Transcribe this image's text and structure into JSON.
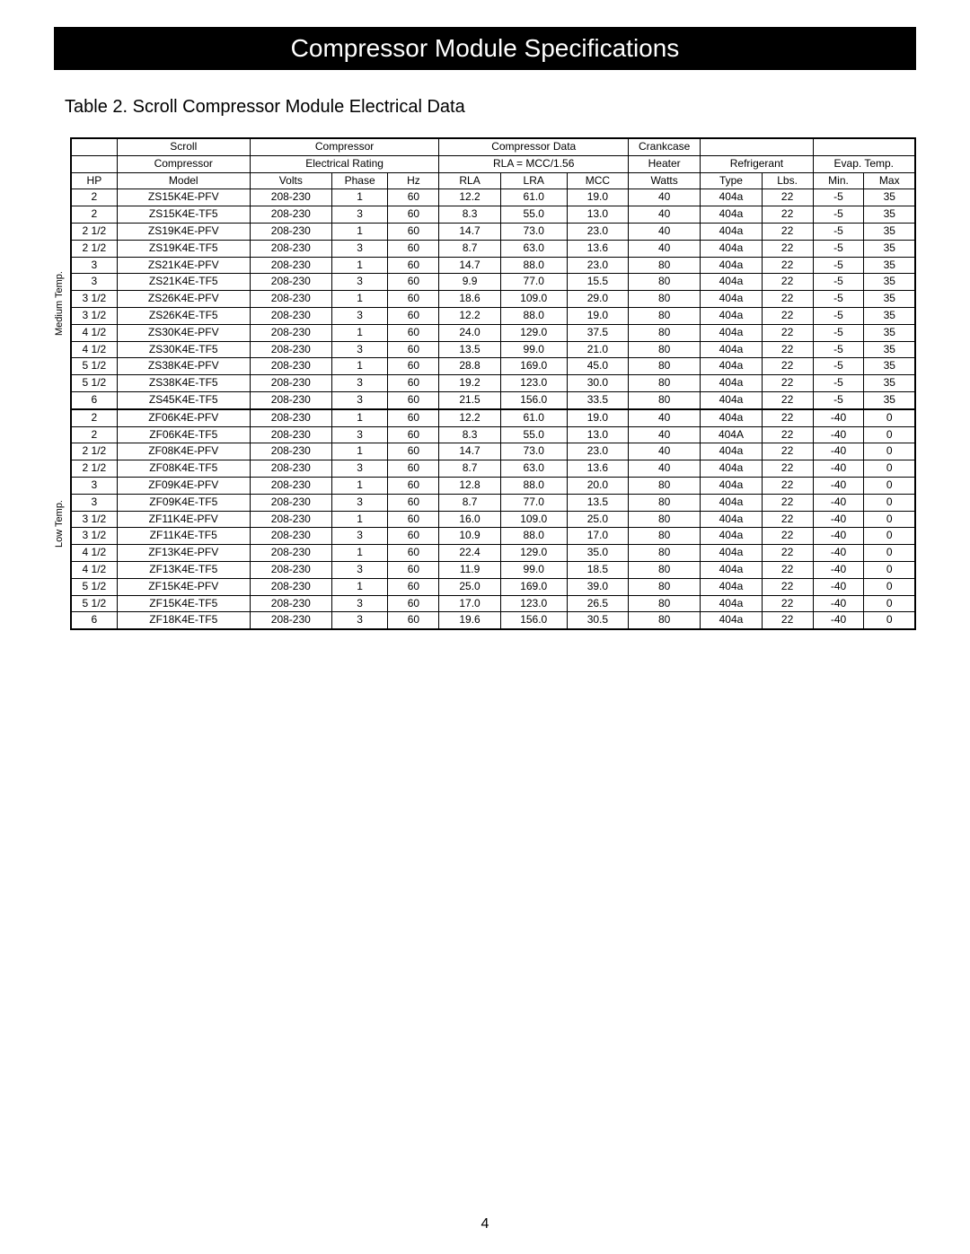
{
  "banner_title": "Compressor Module Specifications",
  "table_caption": "Table 2.  Scroll Compressor Module Electrical Data",
  "page_number": "4",
  "vertical_labels": {
    "medium": "Medium Temp.",
    "low": "Low Temp."
  },
  "header_group_row": {
    "col_a": "",
    "scroll": "Scroll",
    "compressor": "Compressor",
    "comp_data": "Compressor Data",
    "crankcase": "Crankcase",
    "blank1": "",
    "blank2": ""
  },
  "header_group_row2": {
    "col_a": "",
    "scroll": "Compressor",
    "compressor": "Electrical Rating",
    "comp_data": "RLA = MCC/1.56",
    "crankcase": "Heater",
    "refrigerant": "Refrigerant",
    "evap": "Evap. Temp."
  },
  "columns": [
    "HP",
    "Model",
    "Volts",
    "Phase",
    "Hz",
    "RLA",
    "LRA",
    "MCC",
    "Watts",
    "Type",
    "Lbs.",
    "Min.",
    "Max"
  ],
  "rows_medium": [
    [
      "2",
      "ZS15K4E-PFV",
      "208-230",
      "1",
      "60",
      "12.2",
      "61.0",
      "19.0",
      "40",
      "404a",
      "22",
      "-5",
      "35"
    ],
    [
      "2",
      "ZS15K4E-TF5",
      "208-230",
      "3",
      "60",
      "8.3",
      "55.0",
      "13.0",
      "40",
      "404a",
      "22",
      "-5",
      "35"
    ],
    [
      "2 1/2",
      "ZS19K4E-PFV",
      "208-230",
      "1",
      "60",
      "14.7",
      "73.0",
      "23.0",
      "40",
      "404a",
      "22",
      "-5",
      "35"
    ],
    [
      "2 1/2",
      "ZS19K4E-TF5",
      "208-230",
      "3",
      "60",
      "8.7",
      "63.0",
      "13.6",
      "40",
      "404a",
      "22",
      "-5",
      "35"
    ],
    [
      "3",
      "ZS21K4E-PFV",
      "208-230",
      "1",
      "60",
      "14.7",
      "88.0",
      "23.0",
      "80",
      "404a",
      "22",
      "-5",
      "35"
    ],
    [
      "3",
      "ZS21K4E-TF5",
      "208-230",
      "3",
      "60",
      "9.9",
      "77.0",
      "15.5",
      "80",
      "404a",
      "22",
      "-5",
      "35"
    ],
    [
      "3 1/2",
      "ZS26K4E-PFV",
      "208-230",
      "1",
      "60",
      "18.6",
      "109.0",
      "29.0",
      "80",
      "404a",
      "22",
      "-5",
      "35"
    ],
    [
      "3 1/2",
      "ZS26K4E-TF5",
      "208-230",
      "3",
      "60",
      "12.2",
      "88.0",
      "19.0",
      "80",
      "404a",
      "22",
      "-5",
      "35"
    ],
    [
      "4 1/2",
      "ZS30K4E-PFV",
      "208-230",
      "1",
      "60",
      "24.0",
      "129.0",
      "37.5",
      "80",
      "404a",
      "22",
      "-5",
      "35"
    ],
    [
      "4 1/2",
      "ZS30K4E-TF5",
      "208-230",
      "3",
      "60",
      "13.5",
      "99.0",
      "21.0",
      "80",
      "404a",
      "22",
      "-5",
      "35"
    ],
    [
      "5 1/2",
      "ZS38K4E-PFV",
      "208-230",
      "1",
      "60",
      "28.8",
      "169.0",
      "45.0",
      "80",
      "404a",
      "22",
      "-5",
      "35"
    ],
    [
      "5 1/2",
      "ZS38K4E-TF5",
      "208-230",
      "3",
      "60",
      "19.2",
      "123.0",
      "30.0",
      "80",
      "404a",
      "22",
      "-5",
      "35"
    ],
    [
      "6",
      "ZS45K4E-TF5",
      "208-230",
      "3",
      "60",
      "21.5",
      "156.0",
      "33.5",
      "80",
      "404a",
      "22",
      "-5",
      "35"
    ]
  ],
  "rows_low": [
    [
      "2",
      "ZF06K4E-PFV",
      "208-230",
      "1",
      "60",
      "12.2",
      "61.0",
      "19.0",
      "40",
      "404a",
      "22",
      "-40",
      "0"
    ],
    [
      "2",
      "ZF06K4E-TF5",
      "208-230",
      "3",
      "60",
      "8.3",
      "55.0",
      "13.0",
      "40",
      "404A",
      "22",
      "-40",
      "0"
    ],
    [
      "2 1/2",
      "ZF08K4E-PFV",
      "208-230",
      "1",
      "60",
      "14.7",
      "73.0",
      "23.0",
      "40",
      "404a",
      "22",
      "-40",
      "0"
    ],
    [
      "2 1/2",
      "ZF08K4E-TF5",
      "208-230",
      "3",
      "60",
      "8.7",
      "63.0",
      "13.6",
      "40",
      "404a",
      "22",
      "-40",
      "0"
    ],
    [
      "3",
      "ZF09K4E-PFV",
      "208-230",
      "1",
      "60",
      "12.8",
      "88.0",
      "20.0",
      "80",
      "404a",
      "22",
      "-40",
      "0"
    ],
    [
      "3",
      "ZF09K4E-TF5",
      "208-230",
      "3",
      "60",
      "8.7",
      "77.0",
      "13.5",
      "80",
      "404a",
      "22",
      "-40",
      "0"
    ],
    [
      "3 1/2",
      "ZF11K4E-PFV",
      "208-230",
      "1",
      "60",
      "16.0",
      "109.0",
      "25.0",
      "80",
      "404a",
      "22",
      "-40",
      "0"
    ],
    [
      "3 1/2",
      "ZF11K4E-TF5",
      "208-230",
      "3",
      "60",
      "10.9",
      "88.0",
      "17.0",
      "80",
      "404a",
      "22",
      "-40",
      "0"
    ],
    [
      "4 1/2",
      "ZF13K4E-PFV",
      "208-230",
      "1",
      "60",
      "22.4",
      "129.0",
      "35.0",
      "80",
      "404a",
      "22",
      "-40",
      "0"
    ],
    [
      "4 1/2",
      "ZF13K4E-TF5",
      "208-230",
      "3",
      "60",
      "11.9",
      "99.0",
      "18.5",
      "80",
      "404a",
      "22",
      "-40",
      "0"
    ],
    [
      "5 1/2",
      "ZF15K4E-PFV",
      "208-230",
      "1",
      "60",
      "25.0",
      "169.0",
      "39.0",
      "80",
      "404a",
      "22",
      "-40",
      "0"
    ],
    [
      "5 1/2",
      "ZF15K4E-TF5",
      "208-230",
      "3",
      "60",
      "17.0",
      "123.0",
      "26.5",
      "80",
      "404a",
      "22",
      "-40",
      "0"
    ],
    [
      "6",
      "ZF18K4E-TF5",
      "208-230",
      "3",
      "60",
      "19.6",
      "156.0",
      "30.5",
      "80",
      "404a",
      "22",
      "-40",
      "0"
    ]
  ],
  "col_widths_pct": [
    4.5,
    13,
    8,
    5.5,
    5,
    6,
    6.5,
    6,
    7,
    6,
    5,
    5,
    5
  ]
}
